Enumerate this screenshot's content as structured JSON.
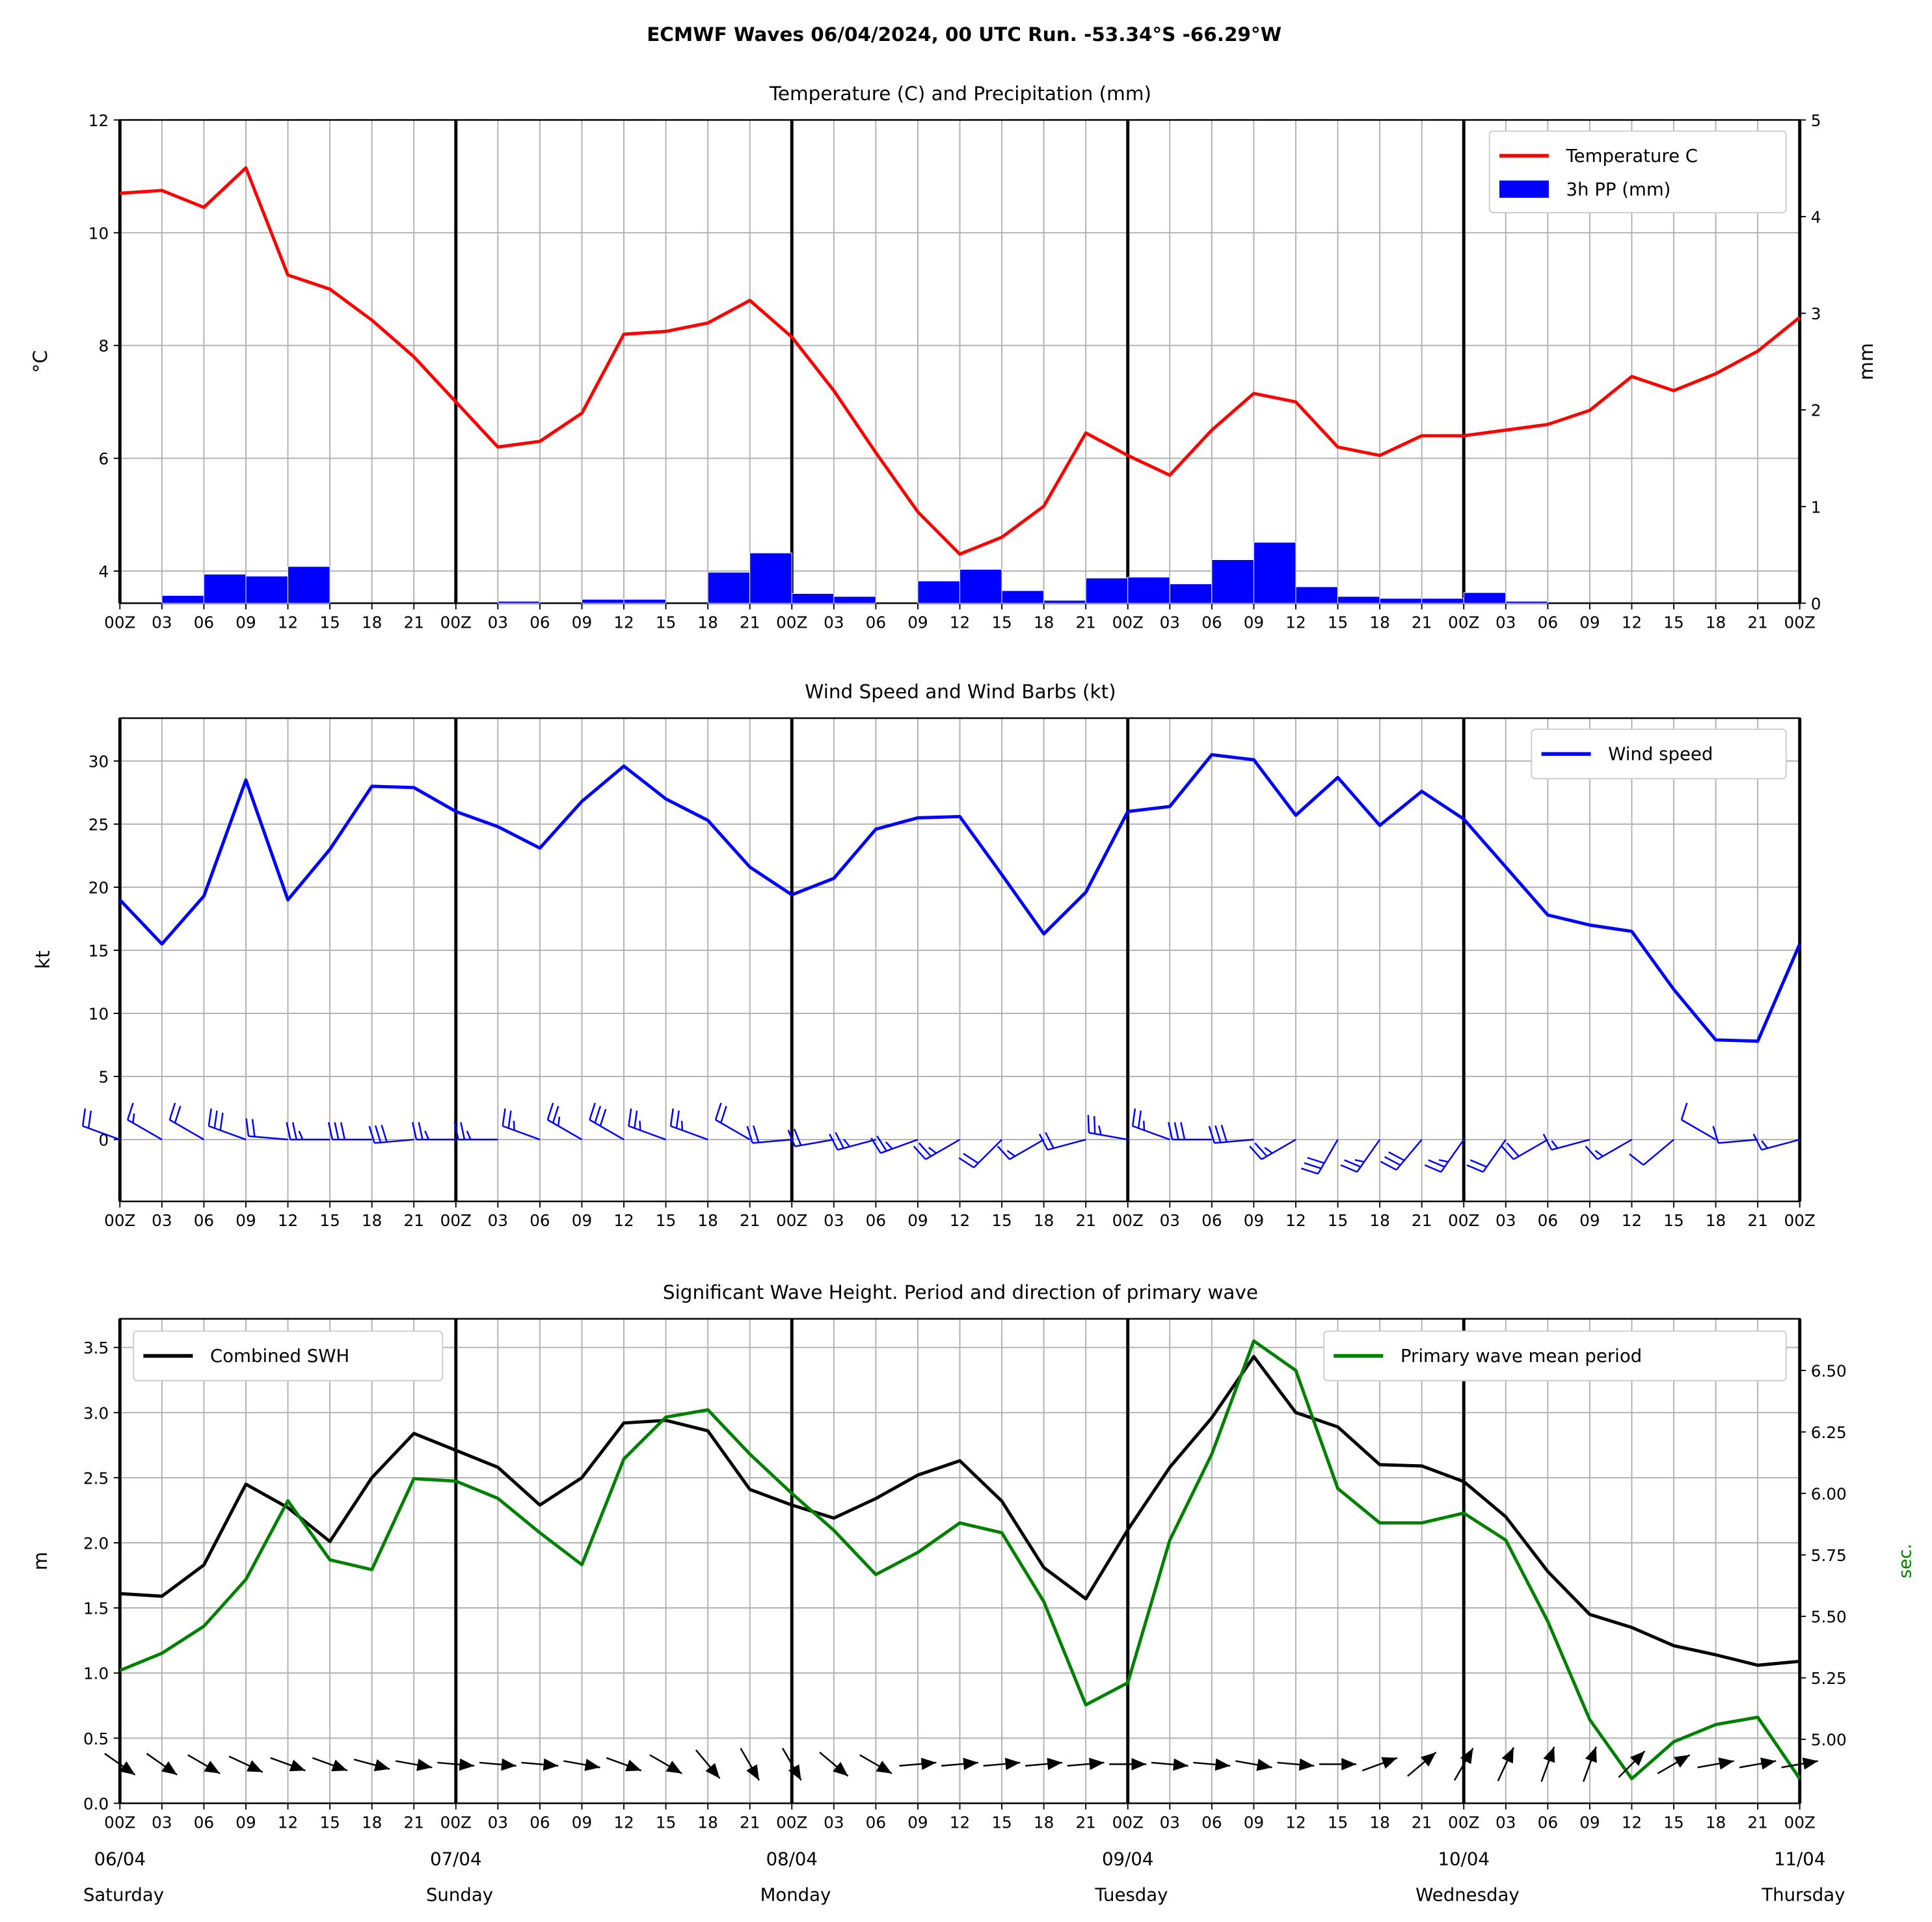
{
  "title": "ECMWF Waves 06/04/2024, 00 UTC Run. -53.34°S -66.29°W",
  "colors": {
    "temp": "#ff0000",
    "precip": "#0000ff",
    "wind": "#0000ff",
    "swh": "#000000",
    "period": "#008000"
  },
  "chart_data": [
    {
      "type": "line",
      "title": "Temperature (C) and Precipitation (mm)",
      "ylabel": "°C",
      "ylabel_right": "mm",
      "ylim": [
        3.43,
        12
      ],
      "ylim_right": [
        0,
        5
      ],
      "yticks": [
        "4",
        "6",
        "8",
        "10",
        "12"
      ],
      "yticks_right": [
        "0",
        "1",
        "2",
        "3",
        "4",
        "5"
      ],
      "legend": [
        "Temperature C",
        "3h PP (mm)"
      ],
      "legend_position": "top-right",
      "x_hours": [
        0,
        3,
        6,
        9,
        12,
        15,
        18,
        21,
        24,
        27,
        30,
        33,
        36,
        39,
        42,
        45,
        48,
        51,
        54,
        57,
        60,
        63,
        66,
        69,
        72,
        75,
        78,
        81,
        84,
        87,
        90,
        93,
        96,
        99,
        102,
        105,
        108,
        111,
        114,
        117,
        120
      ],
      "temperature": [
        10.7,
        10.75,
        10.45,
        11.15,
        9.25,
        9.0,
        8.45,
        7.8,
        7.0,
        6.2,
        6.3,
        6.8,
        8.2,
        8.25,
        8.4,
        8.8,
        8.15,
        7.2,
        6.1,
        5.05,
        4.3,
        4.6,
        5.15,
        6.45,
        6.05,
        5.7,
        6.5,
        7.15,
        7.0,
        6.2,
        6.05,
        6.4,
        6.4,
        6.5,
        6.6,
        6.85,
        7.45,
        7.2,
        7.5,
        7.9,
        8.5
      ],
      "precip_3h": [
        0,
        0.08,
        0.3,
        0.28,
        0.38,
        0,
        0,
        0,
        0,
        0.02,
        0,
        0.04,
        0.04,
        0,
        0.32,
        0.52,
        0.1,
        0.07,
        0,
        0.23,
        0.35,
        0.13,
        0.03,
        0.26,
        0.27,
        0.2,
        0.45,
        0.63,
        0.17,
        0.07,
        0.05,
        0.05,
        0.11,
        0.02,
        0,
        0,
        0,
        0,
        0,
        0
      ]
    },
    {
      "type": "line",
      "title": "Wind Speed and Wind Barbs (kt)",
      "ylabel": "kt",
      "ylim": [
        -4.9,
        33.4
      ],
      "yticks": [
        "0",
        "5",
        "10",
        "15",
        "20",
        "25",
        "30"
      ],
      "legend": [
        "Wind speed"
      ],
      "legend_position": "top-right",
      "wind_speed": [
        19,
        15.5,
        19.3,
        28.5,
        19,
        23,
        28,
        27.9,
        26,
        24.8,
        23.1,
        26.8,
        29.6,
        27,
        25.3,
        21.6,
        19.4,
        20.7,
        24.6,
        25.5,
        25.6,
        21,
        16.3,
        19.6,
        26,
        26.4,
        30.5,
        30.1,
        25.7,
        28.7,
        24.9,
        27.6,
        25.4,
        21.6,
        17.8,
        17,
        16.5,
        11.9,
        7.9,
        7.8,
        15.5
      ],
      "wind_from_deg": [
        290,
        300,
        300,
        290,
        275,
        270,
        270,
        265,
        270,
        270,
        290,
        300,
        300,
        290,
        290,
        300,
        265,
        260,
        255,
        250,
        240,
        225,
        240,
        255,
        280,
        290,
        270,
        265,
        240,
        210,
        215,
        220,
        215,
        215,
        240,
        255,
        240,
        230,
        300,
        265,
        255
      ]
    },
    {
      "type": "line",
      "title": "Significant Wave Height. Period and direction of primary wave",
      "ylabel": "m",
      "ylabel_right": "sec.",
      "ylim": [
        0,
        3.72
      ],
      "ylim_right": [
        4.74,
        6.71
      ],
      "yticks": [
        "0.0",
        "0.5",
        "1.0",
        "1.5",
        "2.0",
        "2.5",
        "3.0",
        "3.5"
      ],
      "yticks_right": [
        "5.00",
        "5.25",
        "5.50",
        "5.75",
        "6.00",
        "6.25",
        "6.50"
      ],
      "legend": [
        "Combined SWH",
        "Primary wave mean period"
      ],
      "legend_position": "top-left / top-right",
      "swh": [
        1.61,
        1.59,
        1.83,
        2.45,
        2.27,
        2.01,
        2.5,
        2.84,
        2.71,
        2.58,
        2.29,
        2.5,
        2.92,
        2.94,
        2.86,
        2.41,
        2.29,
        2.19,
        2.34,
        2.52,
        2.63,
        2.32,
        1.81,
        1.57,
        2.1,
        2.58,
        2.96,
        3.43,
        3.0,
        2.89,
        2.6,
        2.59,
        2.47,
        2.2,
        1.78,
        1.45,
        1.35,
        1.21,
        1.14,
        1.06,
        1.09
      ],
      "period": [
        5.28,
        5.35,
        5.46,
        5.65,
        5.97,
        5.73,
        5.69,
        6.06,
        6.05,
        5.98,
        5.84,
        5.71,
        6.14,
        6.31,
        6.34,
        6.16,
        6.0,
        5.85,
        5.67,
        5.76,
        5.88,
        5.84,
        5.56,
        5.14,
        5.23,
        5.81,
        6.16,
        6.62,
        6.5,
        6.02,
        5.88,
        5.88,
        5.92,
        5.81,
        5.48,
        5.08,
        4.84,
        4.99,
        5.06,
        5.09,
        4.84
      ],
      "wave_dir_to_deg": [
        125,
        125,
        120,
        115,
        110,
        110,
        105,
        100,
        95,
        95,
        95,
        100,
        110,
        120,
        140,
        150,
        150,
        130,
        120,
        85,
        85,
        85,
        85,
        85,
        90,
        95,
        95,
        100,
        95,
        90,
        70,
        50,
        30,
        25,
        20,
        20,
        45,
        60,
        80,
        80,
        80
      ]
    }
  ],
  "x_tick_labels": [
    "00Z",
    "03",
    "06",
    "09",
    "12",
    "15",
    "18",
    "21",
    "00Z",
    "03",
    "06",
    "09",
    "12",
    "15",
    "18",
    "21",
    "00Z",
    "03",
    "06",
    "09",
    "12",
    "15",
    "18",
    "21",
    "00Z",
    "03",
    "06",
    "09",
    "12",
    "15",
    "18",
    "21",
    "00Z",
    "03",
    "06",
    "09",
    "12",
    "15",
    "18",
    "21",
    "00Z"
  ],
  "dates": [
    {
      "date": "06/04",
      "day": "Saturday"
    },
    {
      "date": "07/04",
      "day": "Sunday"
    },
    {
      "date": "08/04",
      "day": "Monday"
    },
    {
      "date": "09/04",
      "day": "Tuesday"
    },
    {
      "date": "10/04",
      "day": "Wednesday"
    },
    {
      "date": "11/04",
      "day": "Thursday"
    }
  ]
}
